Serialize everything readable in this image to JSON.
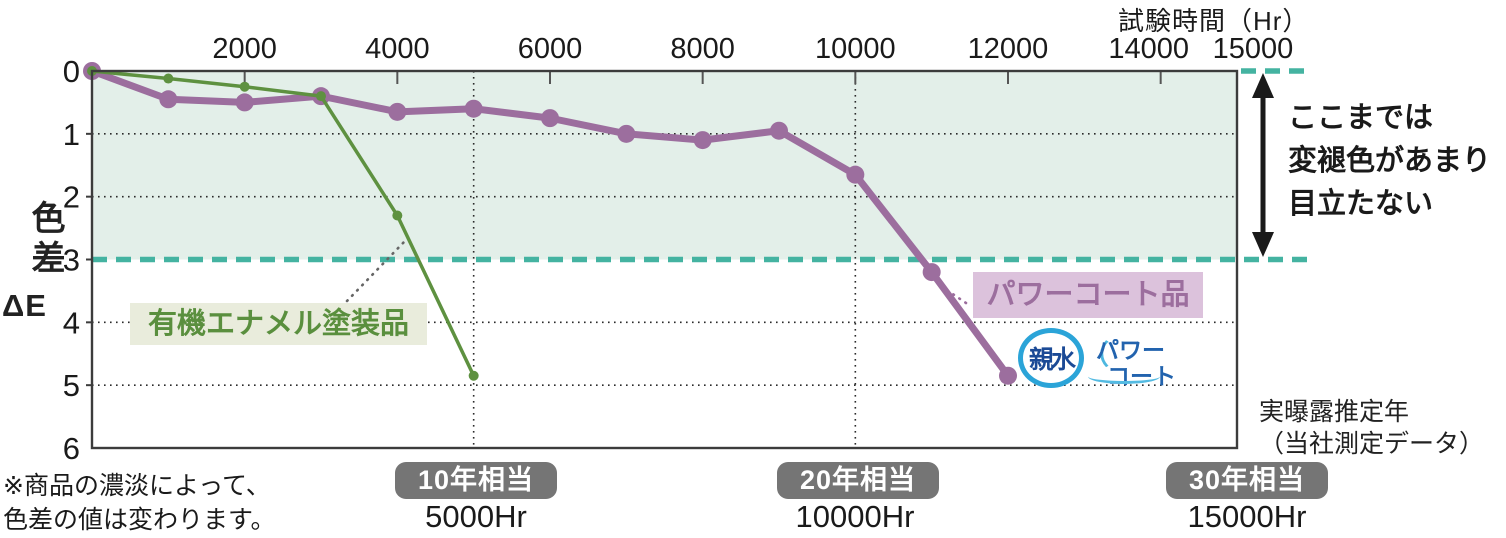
{
  "chart_data": {
    "type": "line",
    "title": "試験時間（Hr）",
    "ylabel_vertical": "色差",
    "ylabel_sub": "ΔE",
    "xlim": [
      0,
      15000
    ],
    "ylim": [
      0,
      6
    ],
    "y_axis_inverted_downward": true,
    "x_ticks": [
      2000,
      4000,
      6000,
      8000,
      10000,
      12000,
      14000,
      15000
    ],
    "y_ticks": [
      0,
      1,
      2,
      3,
      4,
      5,
      6
    ],
    "grid_y": [
      1,
      2,
      4,
      5
    ],
    "vertical_guides": [
      5000,
      10000
    ],
    "highlight_band": {
      "from": 0,
      "to": 3,
      "fill": "#e3efe9",
      "dash_color": "#44b3a1"
    },
    "x_tick_label_dx": {
      "14000": -12,
      "15000": 16
    },
    "series": [
      {
        "name": "パワーコート品",
        "color": "#9c6e9e",
        "line_width": 7,
        "marker_radius": 9,
        "x": [
          0,
          1000,
          2000,
          3000,
          4000,
          5000,
          6000,
          7000,
          8000,
          9000,
          10000,
          11000,
          12000
        ],
        "y": [
          0,
          0.45,
          0.5,
          0.4,
          0.65,
          0.6,
          0.75,
          1.0,
          1.1,
          0.95,
          1.65,
          3.2,
          4.85
        ]
      },
      {
        "name": "有機エナメル塗装品",
        "color": "#5e9140",
        "line_width": 3.5,
        "marker_radius": 5,
        "x": [
          0,
          1000,
          2000,
          3000,
          4000,
          5000
        ],
        "y": [
          0,
          0.12,
          0.25,
          0.4,
          2.3,
          4.85
        ]
      }
    ]
  },
  "annotation": {
    "line1": "ここまでは",
    "line2": "変褪色があまり",
    "line3": "目立たない"
  },
  "equivalents": [
    {
      "badge": "10年相当",
      "hours": "5000Hr"
    },
    {
      "badge": "20年相当",
      "hours": "10000Hr"
    },
    {
      "badge": "30年相当",
      "hours": "15000Hr"
    }
  ],
  "exposure_label": {
    "line1": "実曝露推定年",
    "line2": "（当社測定データ）"
  },
  "footnote": {
    "line1": "※商品の濃淡によって、",
    "line2": "色差の値は変わります。"
  },
  "logo": {
    "circle_text": "親水",
    "paren": "（",
    "line1": "パワー",
    "line2": "コート"
  },
  "colors": {
    "powercoat_purple": "#9c6e9e",
    "organic_green": "#5e9140",
    "threshold_teal": "#44b3a1",
    "band_fill": "#e3efe9",
    "badge_gray": "#757575",
    "organic_label_bg": "#e9ecdc",
    "powercoat_label_bg": "#dcc2dc",
    "logo_cyan": "#2ba4d8",
    "logo_blue": "#2263ae",
    "logo_navy": "#1b4a96"
  }
}
